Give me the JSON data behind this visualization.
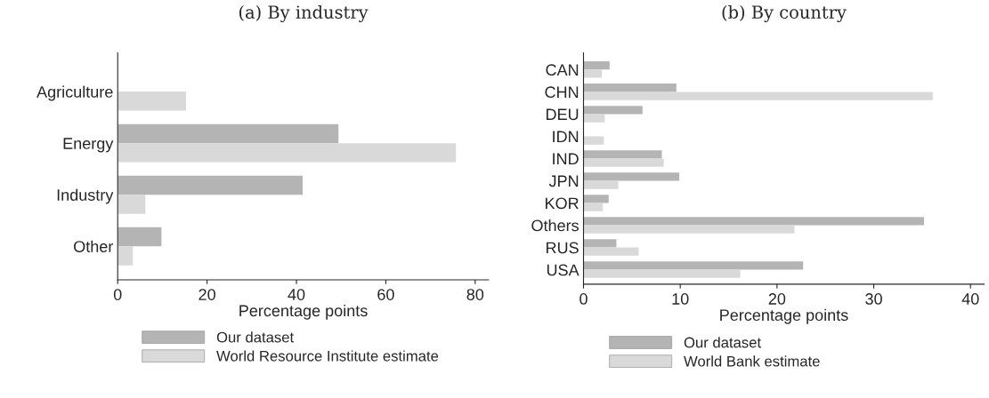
{
  "chart_data": [
    {
      "type": "bar",
      "orientation": "horizontal",
      "title": "(a) By industry",
      "xlabel": "Percentage points",
      "categories": [
        "Agriculture",
        "Energy",
        "Industry",
        "Other"
      ],
      "series": [
        {
          "name": "Our dataset",
          "color": "#b4b4b4",
          "values": [
            0,
            49.4,
            41.4,
            9.8
          ]
        },
        {
          "name": "World Resource Institute estimate",
          "color": "#d9d9d9",
          "values": [
            15.3,
            75.7,
            6.2,
            3.4
          ]
        }
      ],
      "xlim": [
        0,
        83
      ],
      "xticks": [
        0,
        20,
        40,
        60,
        80
      ],
      "grid": false,
      "legend": "bottom"
    },
    {
      "type": "bar",
      "orientation": "horizontal",
      "title": "(b) By country",
      "xlabel": "Percentage points",
      "categories": [
        "CAN",
        "CHN",
        "DEU",
        "IDN",
        "IND",
        "JPN",
        "KOR",
        "Others",
        "RUS",
        "USA"
      ],
      "series": [
        {
          "name": "Our dataset",
          "color": "#b4b4b4",
          "values": [
            2.7,
            9.6,
            6.1,
            0,
            8.1,
            9.9,
            2.6,
            35.2,
            3.4,
            22.7
          ]
        },
        {
          "name": "World Bank estimate",
          "color": "#d9d9d9",
          "values": [
            1.9,
            36.1,
            2.2,
            2.1,
            8.3,
            3.6,
            2.0,
            21.8,
            5.7,
            16.2
          ]
        }
      ],
      "xlim": [
        0,
        41.4
      ],
      "xticks": [
        0,
        10,
        20,
        30,
        40
      ],
      "grid": false,
      "legend": "bottom"
    }
  ]
}
